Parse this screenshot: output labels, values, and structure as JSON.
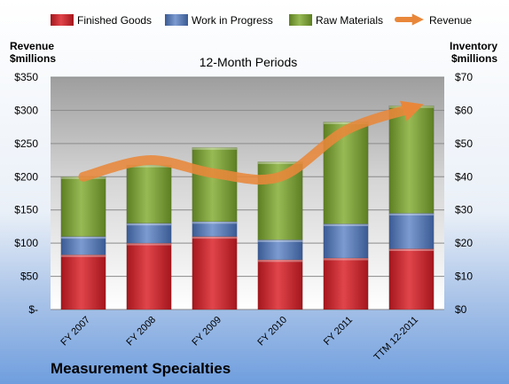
{
  "chart_data": {
    "type": "bar",
    "stacked": true,
    "title": "Measurement Specialties",
    "subtitle": "12-Month Periods",
    "ylabel_left": [
      "Revenue",
      "$millions"
    ],
    "ylabel_right": [
      "Inventory",
      "$millions"
    ],
    "categories": [
      "FY 2007",
      "FY 2008",
      "FY 2009",
      "FY 2010",
      "FY 2011",
      "TTM 12-2011"
    ],
    "left_axis": {
      "range": [
        0,
        350
      ],
      "ticks": [
        "$-",
        "$50",
        "$100",
        "$150",
        "$200",
        "$250",
        "$300",
        "$350"
      ]
    },
    "right_axis": {
      "range": [
        0,
        70
      ],
      "ticks": [
        "$0",
        "$10",
        "$20",
        "$30",
        "$40",
        "$50",
        "$60",
        "$70"
      ]
    },
    "series": [
      {
        "name": "Finished Goods",
        "axis": "right",
        "color": "#c0282f",
        "values": [
          16.5,
          20,
          22,
          15,
          15.5,
          18.3
        ]
      },
      {
        "name": "Work in Progress",
        "axis": "right",
        "color": "#4f6fa8",
        "values": [
          5.5,
          6,
          4.5,
          6,
          10.3,
          10.7
        ]
      },
      {
        "name": "Raw Materials",
        "axis": "right",
        "color": "#74962f",
        "values": [
          18,
          17.5,
          22.3,
          23.5,
          30.7,
          32.4
        ]
      },
      {
        "name": "Revenue",
        "axis": "left",
        "color": "#e8873a",
        "type": "line",
        "values": [
          200,
          225,
          205,
          200,
          270,
          303
        ]
      }
    ],
    "grid": true,
    "legend": "top"
  }
}
